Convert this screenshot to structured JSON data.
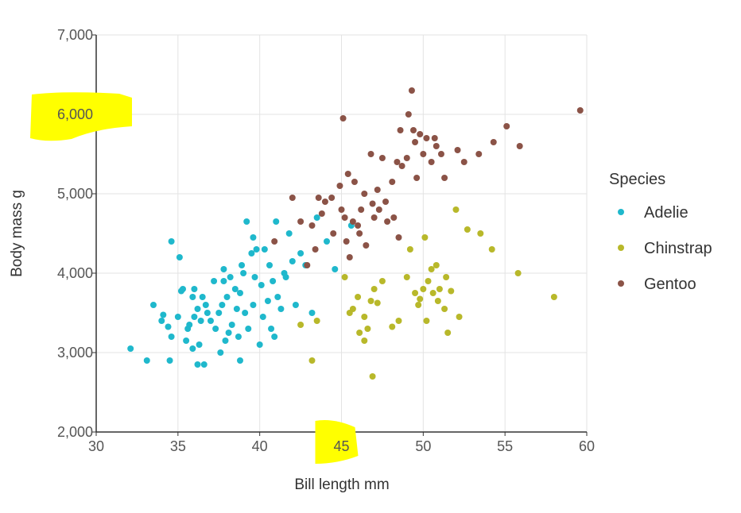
{
  "chart_data": {
    "type": "scatter",
    "xlabel": "Bill length mm",
    "ylabel": "Body mass g",
    "xlim": [
      30,
      60
    ],
    "ylim": [
      2000,
      7000
    ],
    "x_ticks": [
      "30",
      "35",
      "40",
      "45",
      "50",
      "55",
      "60"
    ],
    "y_ticks": [
      "2,000",
      "3,000",
      "4,000",
      "5,000",
      "6,000",
      "7,000"
    ],
    "x_tick_values": [
      30,
      35,
      40,
      45,
      50,
      55,
      60
    ],
    "y_tick_values": [
      2000,
      3000,
      4000,
      5000,
      6000,
      7000
    ],
    "grid": true,
    "legend": {
      "title": "Species",
      "placement": "right"
    },
    "highlights": [
      {
        "label": "6,000",
        "color": "#ffff00"
      },
      {
        "label": "45",
        "color": "#ffff00"
      }
    ],
    "series": [
      {
        "name": "Adelie",
        "color": "#1fb8cc",
        "points": [
          [
            32.1,
            3050
          ],
          [
            33.1,
            2900
          ],
          [
            33.5,
            3600
          ],
          [
            34.0,
            3400
          ],
          [
            34.1,
            3475
          ],
          [
            34.4,
            3325
          ],
          [
            34.5,
            2900
          ],
          [
            34.6,
            4400
          ],
          [
            34.6,
            3200
          ],
          [
            35.0,
            3450
          ],
          [
            35.1,
            4200
          ],
          [
            35.2,
            3775
          ],
          [
            35.3,
            3800
          ],
          [
            35.5,
            3150
          ],
          [
            35.6,
            3300
          ],
          [
            35.7,
            3350
          ],
          [
            35.9,
            3050
          ],
          [
            36.0,
            3800
          ],
          [
            36.0,
            3450
          ],
          [
            36.2,
            3550
          ],
          [
            36.3,
            3100
          ],
          [
            36.4,
            3400
          ],
          [
            36.5,
            3700
          ],
          [
            36.6,
            2850
          ],
          [
            36.7,
            3600
          ],
          [
            36.8,
            3500
          ],
          [
            37.0,
            3400
          ],
          [
            37.2,
            3900
          ],
          [
            37.3,
            3300
          ],
          [
            37.5,
            3500
          ],
          [
            37.6,
            3000
          ],
          [
            37.7,
            3600
          ],
          [
            37.8,
            4050
          ],
          [
            37.9,
            3150
          ],
          [
            38.0,
            3700
          ],
          [
            38.1,
            3250
          ],
          [
            38.2,
            3950
          ],
          [
            38.3,
            3350
          ],
          [
            38.5,
            3800
          ],
          [
            38.6,
            3550
          ],
          [
            38.7,
            3200
          ],
          [
            38.8,
            3750
          ],
          [
            39.0,
            4000
          ],
          [
            39.1,
            3500
          ],
          [
            39.2,
            4650
          ],
          [
            39.3,
            3300
          ],
          [
            39.5,
            4250
          ],
          [
            39.6,
            3600
          ],
          [
            39.7,
            3950
          ],
          [
            39.8,
            4300
          ],
          [
            40.0,
            3100
          ],
          [
            40.1,
            3850
          ],
          [
            40.2,
            3450
          ],
          [
            40.3,
            4300
          ],
          [
            40.5,
            3650
          ],
          [
            40.6,
            4100
          ],
          [
            40.7,
            3300
          ],
          [
            40.8,
            3900
          ],
          [
            41.0,
            4650
          ],
          [
            41.1,
            3700
          ],
          [
            41.3,
            3550
          ],
          [
            41.5,
            4000
          ],
          [
            41.6,
            3950
          ],
          [
            41.8,
            4500
          ],
          [
            42.0,
            4150
          ],
          [
            42.2,
            3600
          ],
          [
            42.5,
            4250
          ],
          [
            42.8,
            4100
          ],
          [
            43.2,
            3500
          ],
          [
            43.5,
            4700
          ],
          [
            44.1,
            4400
          ],
          [
            44.6,
            4050
          ],
          [
            45.6,
            4600
          ],
          [
            36.2,
            2850
          ],
          [
            38.8,
            2900
          ],
          [
            37.8,
            3900
          ],
          [
            39.6,
            4450
          ],
          [
            35.9,
            3700
          ],
          [
            38.9,
            4100
          ],
          [
            40.9,
            3200
          ]
        ]
      },
      {
        "name": "Chinstrap",
        "color": "#b8b82a",
        "points": [
          [
            43.2,
            2900
          ],
          [
            42.5,
            3350
          ],
          [
            43.5,
            3400
          ],
          [
            45.2,
            3950
          ],
          [
            45.5,
            3500
          ],
          [
            45.7,
            3550
          ],
          [
            46.0,
            3700
          ],
          [
            46.1,
            3250
          ],
          [
            46.4,
            3450
          ],
          [
            46.6,
            3300
          ],
          [
            46.8,
            3650
          ],
          [
            46.9,
            2700
          ],
          [
            47.0,
            3800
          ],
          [
            47.5,
            3900
          ],
          [
            48.1,
            3325
          ],
          [
            48.5,
            3400
          ],
          [
            49.0,
            3950
          ],
          [
            49.2,
            4300
          ],
          [
            49.5,
            3750
          ],
          [
            49.7,
            3600
          ],
          [
            50.0,
            3800
          ],
          [
            50.2,
            3400
          ],
          [
            50.3,
            3900
          ],
          [
            50.5,
            4050
          ],
          [
            50.6,
            3750
          ],
          [
            50.8,
            4100
          ],
          [
            50.9,
            3650
          ],
          [
            51.0,
            3800
          ],
          [
            51.3,
            3550
          ],
          [
            51.4,
            3950
          ],
          [
            51.5,
            3250
          ],
          [
            51.7,
            3775
          ],
          [
            52.0,
            4800
          ],
          [
            52.2,
            3450
          ],
          [
            52.7,
            4550
          ],
          [
            53.5,
            4500
          ],
          [
            54.2,
            4300
          ],
          [
            55.8,
            4000
          ],
          [
            58.0,
            3700
          ],
          [
            49.8,
            3675
          ],
          [
            47.2,
            3625
          ],
          [
            46.4,
            3150
          ],
          [
            50.1,
            4450
          ]
        ]
      },
      {
        "name": "Gentoo",
        "color": "#8b5347",
        "points": [
          [
            40.9,
            4400
          ],
          [
            42.0,
            4950
          ],
          [
            42.5,
            4650
          ],
          [
            42.9,
            4100
          ],
          [
            43.2,
            4600
          ],
          [
            43.4,
            4300
          ],
          [
            43.6,
            4950
          ],
          [
            44.0,
            4900
          ],
          [
            44.5,
            4500
          ],
          [
            44.9,
            5100
          ],
          [
            45.0,
            4800
          ],
          [
            45.1,
            5950
          ],
          [
            45.3,
            4400
          ],
          [
            45.4,
            5250
          ],
          [
            45.5,
            4200
          ],
          [
            45.7,
            4650
          ],
          [
            45.8,
            5150
          ],
          [
            46.1,
            4500
          ],
          [
            46.2,
            4800
          ],
          [
            46.4,
            5000
          ],
          [
            46.5,
            4350
          ],
          [
            46.8,
            5500
          ],
          [
            47.0,
            4700
          ],
          [
            47.2,
            5050
          ],
          [
            47.3,
            4800
          ],
          [
            47.5,
            5450
          ],
          [
            47.7,
            4900
          ],
          [
            48.1,
            5150
          ],
          [
            48.2,
            4700
          ],
          [
            48.4,
            5400
          ],
          [
            48.6,
            5800
          ],
          [
            48.7,
            5350
          ],
          [
            49.0,
            5450
          ],
          [
            49.1,
            6000
          ],
          [
            49.3,
            6300
          ],
          [
            49.5,
            5650
          ],
          [
            49.6,
            5200
          ],
          [
            49.8,
            5750
          ],
          [
            50.0,
            5500
          ],
          [
            50.2,
            5700
          ],
          [
            50.5,
            5400
          ],
          [
            50.8,
            5600
          ],
          [
            51.1,
            5500
          ],
          [
            51.3,
            5200
          ],
          [
            52.1,
            5550
          ],
          [
            52.5,
            5400
          ],
          [
            53.4,
            5500
          ],
          [
            54.3,
            5650
          ],
          [
            55.1,
            5850
          ],
          [
            55.9,
            5600
          ],
          [
            59.6,
            6050
          ],
          [
            46.0,
            4600
          ],
          [
            45.2,
            4700
          ],
          [
            47.8,
            4650
          ],
          [
            48.5,
            4450
          ],
          [
            49.4,
            5800
          ],
          [
            50.7,
            5700
          ],
          [
            46.9,
            4875
          ],
          [
            44.4,
            4950
          ],
          [
            43.8,
            4750
          ]
        ]
      }
    ]
  }
}
